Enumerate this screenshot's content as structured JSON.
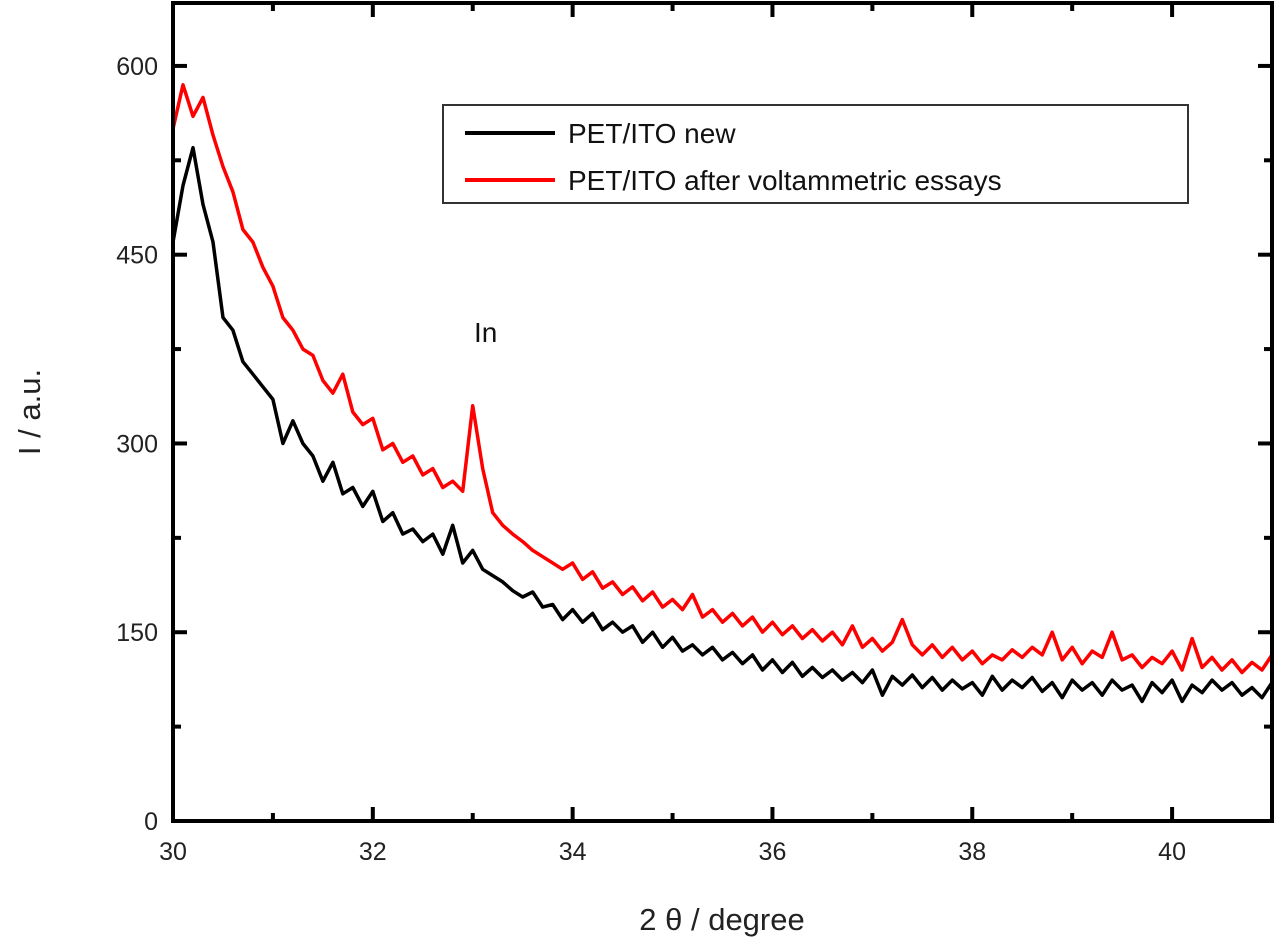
{
  "chart_data": {
    "type": "line",
    "title": "",
    "xlabel": "2 θ / degree",
    "ylabel": "I / a.u.",
    "xlim": [
      30,
      41
    ],
    "ylim": [
      0,
      650
    ],
    "x_ticks": [
      30,
      32,
      34,
      36,
      38,
      40
    ],
    "x_minor_step": 1,
    "y_ticks": [
      0,
      150,
      300,
      450,
      600
    ],
    "y_minor_step": 75,
    "grid": false,
    "legend_position": "top-right",
    "annotations": [
      {
        "text": "In",
        "x": 33.0,
        "y": 380
      }
    ],
    "x_start": 30.0,
    "x_step": 0.1,
    "series": [
      {
        "name": "PET/ITO new",
        "color": "#000000",
        "values": [
          460,
          505,
          535,
          490,
          460,
          400,
          390,
          365,
          355,
          345,
          335,
          300,
          318,
          300,
          290,
          270,
          285,
          260,
          265,
          250,
          262,
          238,
          245,
          228,
          232,
          222,
          228,
          212,
          235,
          205,
          215,
          200,
          195,
          190,
          183,
          178,
          182,
          170,
          172,
          160,
          168,
          158,
          165,
          152,
          158,
          150,
          155,
          142,
          150,
          138,
          146,
          135,
          140,
          132,
          138,
          128,
          134,
          125,
          132,
          120,
          128,
          118,
          126,
          115,
          122,
          114,
          120,
          112,
          118,
          110,
          120,
          100,
          115,
          108,
          116,
          106,
          114,
          104,
          112,
          105,
          110,
          100,
          115,
          104,
          112,
          106,
          114,
          103,
          110,
          98,
          112,
          104,
          110,
          100,
          112,
          104,
          108,
          95,
          110,
          102,
          112,
          95,
          108,
          102,
          112,
          104,
          110,
          100,
          106,
          98,
          110
        ]
      },
      {
        "name": "PET/ITO after voltammetric essays",
        "color": "#ff0000",
        "values": [
          550,
          585,
          560,
          575,
          545,
          520,
          500,
          470,
          460,
          440,
          425,
          400,
          390,
          375,
          370,
          350,
          340,
          355,
          325,
          315,
          320,
          295,
          300,
          285,
          290,
          275,
          280,
          265,
          270,
          262,
          330,
          280,
          245,
          235,
          228,
          222,
          215,
          210,
          205,
          200,
          205,
          192,
          198,
          185,
          190,
          180,
          186,
          175,
          182,
          170,
          176,
          168,
          180,
          162,
          168,
          158,
          165,
          155,
          162,
          150,
          158,
          148,
          155,
          145,
          152,
          143,
          150,
          140,
          155,
          138,
          145,
          135,
          142,
          160,
          140,
          132,
          140,
          130,
          138,
          128,
          135,
          125,
          132,
          128,
          136,
          130,
          138,
          132,
          150,
          128,
          138,
          125,
          135,
          130,
          150,
          128,
          132,
          122,
          130,
          125,
          135,
          120,
          145,
          122,
          130,
          120,
          128,
          118,
          126,
          120,
          132
        ]
      }
    ]
  }
}
